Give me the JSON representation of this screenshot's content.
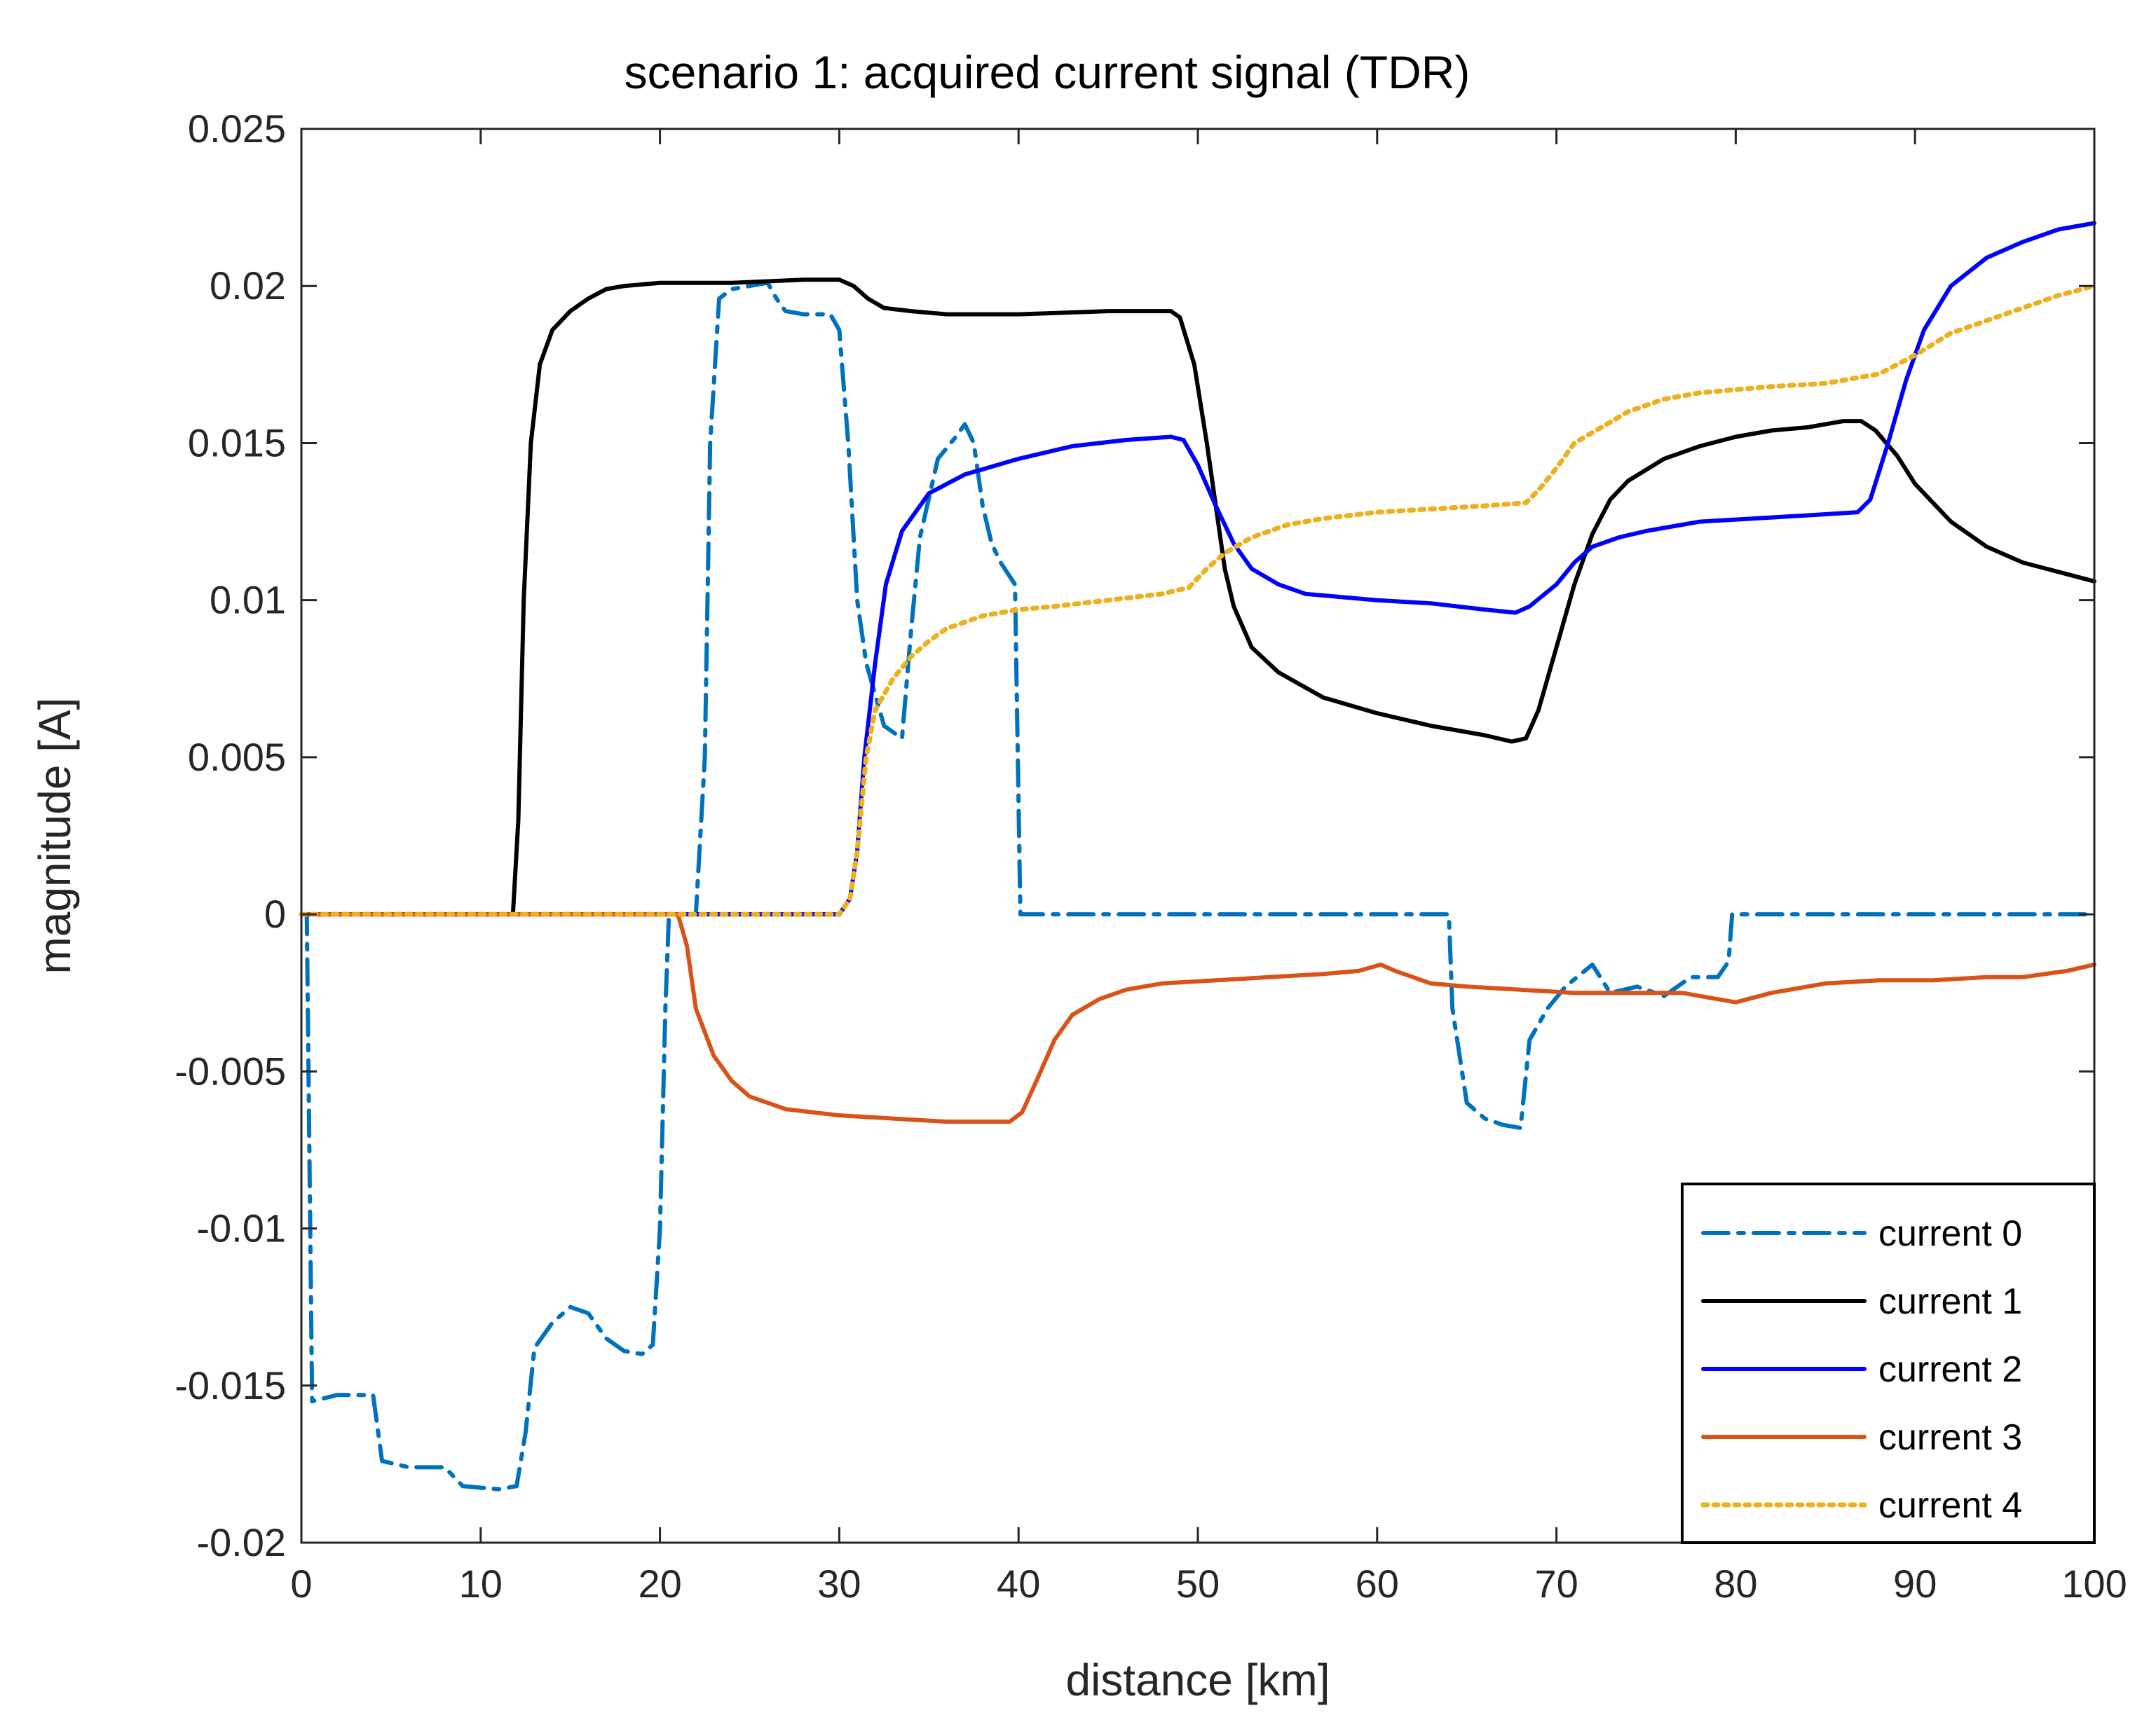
{
  "chart_data": {
    "type": "line",
    "title": "scenario 1: acquired current signal (TDR)",
    "xlabel": "distance [km]",
    "ylabel": "magnitude [A]",
    "xlim": [
      0,
      100
    ],
    "ylim": [
      -0.02,
      0.025
    ],
    "xticks": [
      0,
      10,
      20,
      30,
      40,
      50,
      60,
      70,
      80,
      90,
      100
    ],
    "yticks": [
      -0.02,
      -0.015,
      -0.01,
      -0.005,
      0,
      0.005,
      0.01,
      0.015,
      0.02,
      0.025
    ],
    "xtick_labels": [
      "0",
      "10",
      "20",
      "30",
      "40",
      "50",
      "60",
      "70",
      "80",
      "90",
      "100"
    ],
    "ytick_labels": [
      "-0.02",
      "-0.015",
      "-0.01",
      "-0.005",
      "0",
      "0.005",
      "0.01",
      "0.015",
      "0.02",
      "0.025"
    ],
    "grid": false,
    "legend_position": "bottom-right",
    "series": [
      {
        "name": "current 0",
        "color": "#0072BD",
        "style": "dashdot",
        "points": [
          [
            0,
            0
          ],
          [
            0.3,
            0
          ],
          [
            0.6,
            -0.0155
          ],
          [
            2,
            -0.0153
          ],
          [
            4,
            -0.0153
          ],
          [
            4.5,
            -0.0174
          ],
          [
            6,
            -0.0176
          ],
          [
            8,
            -0.0176
          ],
          [
            9,
            -0.0182
          ],
          [
            11,
            -0.0183
          ],
          [
            12,
            -0.0182
          ],
          [
            12.5,
            -0.0165
          ],
          [
            13,
            -0.0138
          ],
          [
            14,
            -0.013
          ],
          [
            15,
            -0.0125
          ],
          [
            16,
            -0.0127
          ],
          [
            17,
            -0.0135
          ],
          [
            18,
            -0.0139
          ],
          [
            19,
            -0.014
          ],
          [
            19.6,
            -0.0137
          ],
          [
            20,
            -0.01
          ],
          [
            20.3,
            -0.003
          ],
          [
            20.5,
            0
          ],
          [
            22,
            0
          ],
          [
            22.5,
            0.005
          ],
          [
            22.8,
            0.015
          ],
          [
            23.3,
            0.0196
          ],
          [
            24,
            0.0199
          ],
          [
            25,
            0.02
          ],
          [
            26,
            0.0201
          ],
          [
            26.5,
            0.0196
          ],
          [
            27,
            0.0192
          ],
          [
            28,
            0.0191
          ],
          [
            29.5,
            0.0191
          ],
          [
            30,
            0.0186
          ],
          [
            30.5,
            0.015
          ],
          [
            31,
            0.01
          ],
          [
            31.5,
            0.008
          ],
          [
            32,
            0.007
          ],
          [
            32.5,
            0.006
          ],
          [
            33.5,
            0.0056
          ],
          [
            34,
            0.009
          ],
          [
            34.5,
            0.012
          ],
          [
            35.5,
            0.0145
          ],
          [
            36.5,
            0.0152
          ],
          [
            37,
            0.0156
          ],
          [
            37.5,
            0.015
          ],
          [
            38,
            0.013
          ],
          [
            38.5,
            0.0118
          ],
          [
            39,
            0.0112
          ],
          [
            39.8,
            0.0105
          ],
          [
            40.1,
            0
          ],
          [
            64,
            0
          ],
          [
            64.2,
            -0.003
          ],
          [
            65,
            -0.006
          ],
          [
            66,
            -0.0065
          ],
          [
            67,
            -0.0067
          ],
          [
            68,
            -0.0068
          ],
          [
            68.5,
            -0.004
          ],
          [
            69.5,
            -0.003
          ],
          [
            70.5,
            -0.0023
          ],
          [
            72,
            -0.0016
          ],
          [
            73,
            -0.0025
          ],
          [
            74.5,
            -0.0023
          ],
          [
            76,
            -0.0026
          ],
          [
            77.5,
            -0.002
          ],
          [
            79,
            -0.002
          ],
          [
            79.6,
            -0.0015
          ],
          [
            79.8,
            0
          ],
          [
            100,
            0
          ]
        ]
      },
      {
        "name": "current 1",
        "color": "#000000",
        "style": "solid",
        "points": [
          [
            0,
            0
          ],
          [
            11.8,
            0
          ],
          [
            12.1,
            0.003
          ],
          [
            12.4,
            0.01
          ],
          [
            12.8,
            0.015
          ],
          [
            13.3,
            0.0175
          ],
          [
            14,
            0.0186
          ],
          [
            15,
            0.0192
          ],
          [
            16,
            0.0196
          ],
          [
            17,
            0.0199
          ],
          [
            18,
            0.02
          ],
          [
            20,
            0.0201
          ],
          [
            24,
            0.0201
          ],
          [
            28,
            0.0202
          ],
          [
            30,
            0.0202
          ],
          [
            30.8,
            0.02
          ],
          [
            31.6,
            0.0196
          ],
          [
            32.5,
            0.0193
          ],
          [
            34,
            0.0192
          ],
          [
            36,
            0.0191
          ],
          [
            40,
            0.0191
          ],
          [
            45,
            0.0192
          ],
          [
            48.5,
            0.0192
          ],
          [
            49,
            0.019
          ],
          [
            49.8,
            0.0175
          ],
          [
            50.5,
            0.015
          ],
          [
            51,
            0.013
          ],
          [
            51.5,
            0.011
          ],
          [
            52,
            0.0098
          ],
          [
            53,
            0.0085
          ],
          [
            54.5,
            0.0077
          ],
          [
            57,
            0.0069
          ],
          [
            60,
            0.0064
          ],
          [
            63,
            0.006
          ],
          [
            66,
            0.0057
          ],
          [
            67.5,
            0.0055
          ],
          [
            68.3,
            0.0056
          ],
          [
            69,
            0.0065
          ],
          [
            70,
            0.0085
          ],
          [
            71,
            0.0105
          ],
          [
            72,
            0.0121
          ],
          [
            73,
            0.0132
          ],
          [
            74,
            0.0138
          ],
          [
            76,
            0.0145
          ],
          [
            78,
            0.0149
          ],
          [
            80,
            0.0152
          ],
          [
            82,
            0.0154
          ],
          [
            84,
            0.0155
          ],
          [
            86,
            0.0157
          ],
          [
            87,
            0.0157
          ],
          [
            87.8,
            0.0154
          ],
          [
            89,
            0.0146
          ],
          [
            90,
            0.0137
          ],
          [
            92,
            0.0125
          ],
          [
            94,
            0.0117
          ],
          [
            96,
            0.0112
          ],
          [
            98,
            0.0109
          ],
          [
            100,
            0.0106
          ]
        ]
      },
      {
        "name": "current 2",
        "color": "#0000FF",
        "style": "solid",
        "points": [
          [
            0,
            0
          ],
          [
            30,
            0
          ],
          [
            30.6,
            0.0005
          ],
          [
            31,
            0.002
          ],
          [
            31.4,
            0.005
          ],
          [
            32,
            0.008
          ],
          [
            32.6,
            0.0105
          ],
          [
            33.5,
            0.0122
          ],
          [
            35,
            0.0134
          ],
          [
            37,
            0.014
          ],
          [
            40,
            0.0145
          ],
          [
            43,
            0.0149
          ],
          [
            46,
            0.0151
          ],
          [
            48.5,
            0.0152
          ],
          [
            49.2,
            0.0151
          ],
          [
            50,
            0.0143
          ],
          [
            51,
            0.013
          ],
          [
            52,
            0.0118
          ],
          [
            53,
            0.011
          ],
          [
            54.5,
            0.0105
          ],
          [
            56,
            0.0102
          ],
          [
            58,
            0.0101
          ],
          [
            60,
            0.01
          ],
          [
            63,
            0.0099
          ],
          [
            66,
            0.0097
          ],
          [
            67.7,
            0.0096
          ],
          [
            68.5,
            0.0098
          ],
          [
            70,
            0.0105
          ],
          [
            71,
            0.0112
          ],
          [
            72,
            0.0117
          ],
          [
            73.5,
            0.012
          ],
          [
            75,
            0.0122
          ],
          [
            78,
            0.0125
          ],
          [
            81,
            0.0126
          ],
          [
            84,
            0.0127
          ],
          [
            86.8,
            0.0128
          ],
          [
            87.5,
            0.0132
          ],
          [
            88.5,
            0.015
          ],
          [
            89.5,
            0.017
          ],
          [
            90.5,
            0.0186
          ],
          [
            92,
            0.02
          ],
          [
            94,
            0.0209
          ],
          [
            96,
            0.0214
          ],
          [
            98,
            0.0218
          ],
          [
            100,
            0.022
          ]
        ]
      },
      {
        "name": "current 3",
        "color": "#D95319",
        "style": "solid",
        "points": [
          [
            0,
            0
          ],
          [
            21,
            0
          ],
          [
            21.5,
            -0.001
          ],
          [
            22,
            -0.003
          ],
          [
            23,
            -0.0045
          ],
          [
            24,
            -0.0053
          ],
          [
            25,
            -0.0058
          ],
          [
            27,
            -0.0062
          ],
          [
            30,
            -0.0064
          ],
          [
            33,
            -0.0065
          ],
          [
            36,
            -0.0066
          ],
          [
            38,
            -0.0066
          ],
          [
            39.5,
            -0.0066
          ],
          [
            40.2,
            -0.0063
          ],
          [
            41,
            -0.0053
          ],
          [
            42,
            -0.004
          ],
          [
            43,
            -0.0032
          ],
          [
            44.5,
            -0.0027
          ],
          [
            46,
            -0.0024
          ],
          [
            48,
            -0.0022
          ],
          [
            51,
            -0.0021
          ],
          [
            54,
            -0.002
          ],
          [
            57,
            -0.0019
          ],
          [
            59,
            -0.0018
          ],
          [
            60.2,
            -0.0016
          ],
          [
            61,
            -0.0018
          ],
          [
            63,
            -0.0022
          ],
          [
            65,
            -0.0023
          ],
          [
            68,
            -0.0024
          ],
          [
            71,
            -0.0025
          ],
          [
            74,
            -0.0025
          ],
          [
            77,
            -0.0025
          ],
          [
            79,
            -0.0027
          ],
          [
            80,
            -0.0028
          ],
          [
            82,
            -0.0025
          ],
          [
            85,
            -0.0022
          ],
          [
            88,
            -0.0021
          ],
          [
            91,
            -0.0021
          ],
          [
            94,
            -0.002
          ],
          [
            96,
            -0.002
          ],
          [
            98.5,
            -0.0018
          ],
          [
            100,
            -0.0016
          ]
        ]
      },
      {
        "name": "current 4",
        "color": "#EDB120",
        "style": "dotted",
        "points": [
          [
            0,
            0
          ],
          [
            30,
            0
          ],
          [
            30.6,
            0.0005
          ],
          [
            31,
            0.002
          ],
          [
            31.5,
            0.005
          ],
          [
            32,
            0.0065
          ],
          [
            33,
            0.0075
          ],
          [
            34,
            0.0082
          ],
          [
            35,
            0.0087
          ],
          [
            36,
            0.0091
          ],
          [
            38,
            0.0095
          ],
          [
            40,
            0.0097
          ],
          [
            42,
            0.0098
          ],
          [
            45,
            0.01
          ],
          [
            48,
            0.0102
          ],
          [
            49.5,
            0.0104
          ],
          [
            50.5,
            0.011
          ],
          [
            51.5,
            0.0115
          ],
          [
            53,
            0.012
          ],
          [
            55,
            0.0124
          ],
          [
            57,
            0.0126
          ],
          [
            60,
            0.0128
          ],
          [
            63,
            0.0129
          ],
          [
            66,
            0.013
          ],
          [
            68.3,
            0.0131
          ],
          [
            69,
            0.0135
          ],
          [
            70,
            0.0142
          ],
          [
            71,
            0.015
          ],
          [
            72.5,
            0.0155
          ],
          [
            74,
            0.016
          ],
          [
            76,
            0.0164
          ],
          [
            78,
            0.0166
          ],
          [
            82,
            0.0168
          ],
          [
            85,
            0.0169
          ],
          [
            88,
            0.0172
          ],
          [
            90,
            0.0178
          ],
          [
            92,
            0.0185
          ],
          [
            94,
            0.0189
          ],
          [
            96,
            0.0193
          ],
          [
            98,
            0.0197
          ],
          [
            100,
            0.02
          ]
        ]
      }
    ]
  }
}
